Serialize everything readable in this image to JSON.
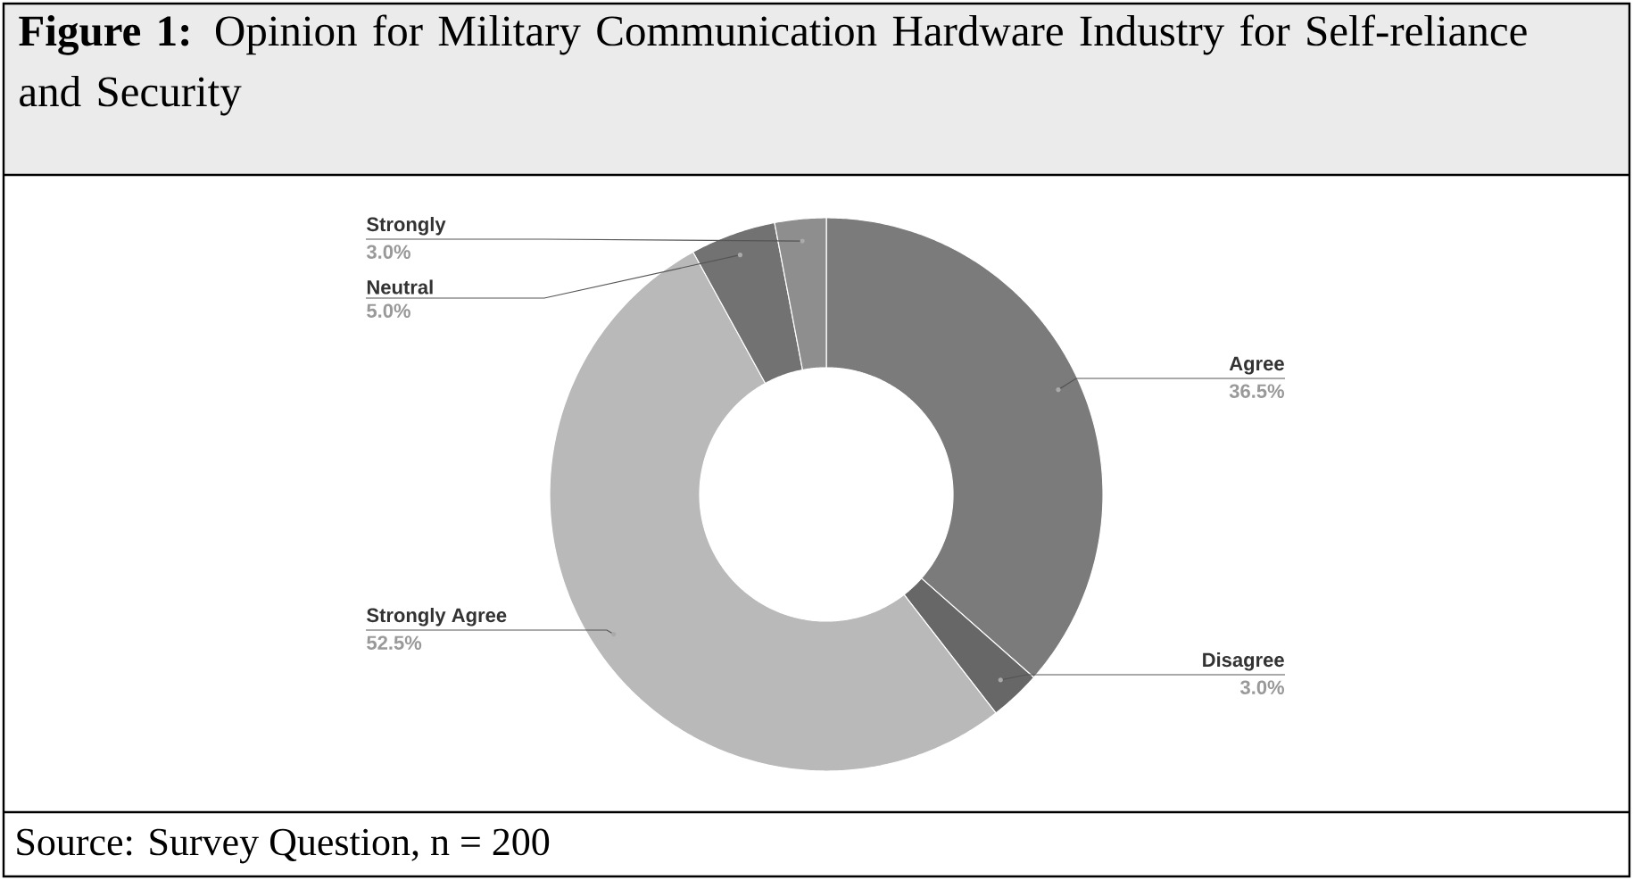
{
  "chart_data": {
    "type": "donut",
    "title": "**Figure 1:** Opinion for Military Communication Hardware Industry for Self-reliance and Security",
    "categories": [
      "Agree",
      "Disagree",
      "Strongly Agree",
      "Neutral",
      "Strongly"
    ],
    "values": [
      36.5,
      3.0,
      52.5,
      5.0,
      3.0
    ],
    "value_labels": [
      "36.5%",
      "3.0%",
      "52.5%",
      "5.0%",
      "3.0%"
    ],
    "colors": [
      "#7b7b7b",
      "#676767",
      "#b9b9b9",
      "#727272",
      "#8e8e8e"
    ],
    "annotations": [
      "Source: Survey Question, n = 200"
    ]
  }
}
